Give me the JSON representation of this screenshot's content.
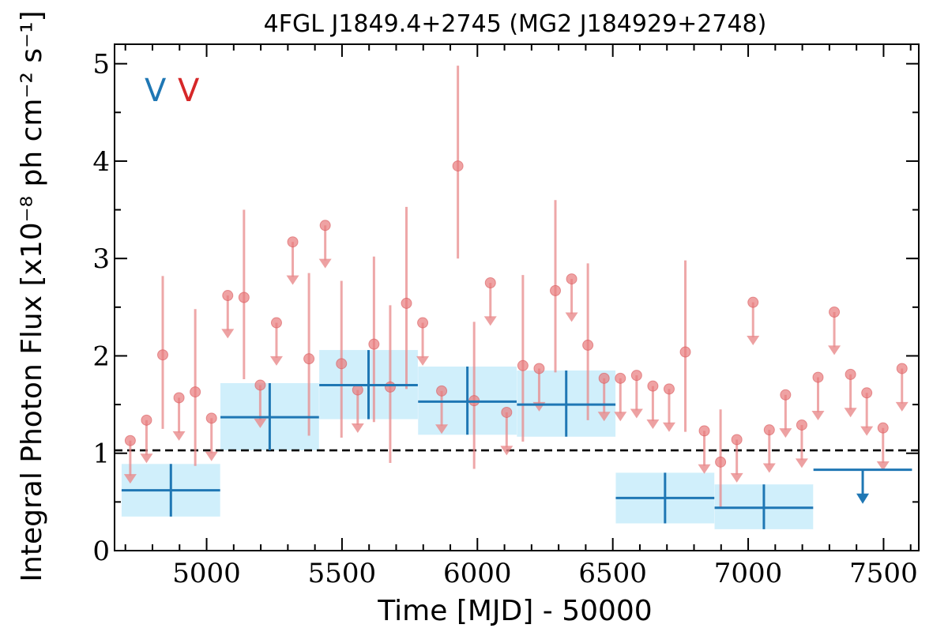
{
  "chart_data": {
    "type": "scatter",
    "title": "4FGL J1849.4+2745 (MG2 J184929+2748)",
    "xlabel": "Time [MJD] - 50000",
    "ylabel": "Integral Photon Flux [x10⁻⁸ ph cm⁻² s⁻¹]",
    "xlim": [
      4660,
      7630
    ],
    "ylim": [
      0,
      5.2
    ],
    "x_ticks": [
      5000,
      5500,
      6000,
      6500,
      7000,
      7500
    ],
    "y_ticks": [
      0,
      1,
      2,
      3,
      4,
      5
    ],
    "legend": {
      "placement": "top-left",
      "entries": [
        {
          "label": "V",
          "color": "#1f77b4"
        },
        {
          "label": "V",
          "color": "#d62728"
        }
      ]
    },
    "colors": {
      "long_bins": "#1f77b4",
      "long_band": "#d0effb",
      "short_bins": "#e8898b",
      "short_fill": "#e87a7c",
      "reference_line": "#000000"
    },
    "reference_line": {
      "y": 1.03,
      "style": "dashed"
    },
    "series": [
      {
        "name": "",
        "kind": "long_bins",
        "points": [
          {
            "x": 4868,
            "xerr": 182,
            "y": 0.62,
            "ylo": 0.35,
            "yhi": 0.89,
            "upper_limit": false
          },
          {
            "x": 5233,
            "xerr": 182,
            "y": 1.37,
            "ylo": 1.03,
            "yhi": 1.72,
            "upper_limit": false
          },
          {
            "x": 5598,
            "xerr": 182,
            "y": 1.7,
            "ylo": 1.35,
            "yhi": 2.06,
            "upper_limit": false
          },
          {
            "x": 5963,
            "xerr": 182,
            "y": 1.53,
            "ylo": 1.19,
            "yhi": 1.89,
            "upper_limit": false
          },
          {
            "x": 6328,
            "xerr": 182,
            "y": 1.5,
            "ylo": 1.17,
            "yhi": 1.85,
            "upper_limit": false
          },
          {
            "x": 6693,
            "xerr": 182,
            "y": 0.54,
            "ylo": 0.28,
            "yhi": 0.8,
            "upper_limit": false
          },
          {
            "x": 7058,
            "xerr": 182,
            "y": 0.44,
            "ylo": 0.22,
            "yhi": 0.68,
            "upper_limit": false
          },
          {
            "x": 7423,
            "xerr": 182,
            "y": 0.83,
            "upper_limit": true
          }
        ]
      },
      {
        "name": "",
        "kind": "short_bins",
        "points": [
          {
            "x": 4718,
            "y": 1.13,
            "upper_limit": true
          },
          {
            "x": 4778,
            "y": 1.34,
            "upper_limit": true
          },
          {
            "x": 4838,
            "y": 2.01,
            "ylo": 1.25,
            "yhi": 2.82,
            "upper_limit": false
          },
          {
            "x": 4898,
            "y": 1.57,
            "upper_limit": true
          },
          {
            "x": 4958,
            "y": 1.63,
            "ylo": 0.87,
            "yhi": 2.48,
            "upper_limit": false
          },
          {
            "x": 5018,
            "y": 1.36,
            "upper_limit": true
          },
          {
            "x": 5078,
            "y": 2.62,
            "upper_limit": true
          },
          {
            "x": 5138,
            "y": 2.6,
            "ylo": 1.76,
            "yhi": 3.5,
            "upper_limit": false
          },
          {
            "x": 5198,
            "y": 1.7,
            "upper_limit": true
          },
          {
            "x": 5258,
            "y": 2.34,
            "upper_limit": true
          },
          {
            "x": 5318,
            "y": 3.17,
            "upper_limit": true
          },
          {
            "x": 5378,
            "y": 1.97,
            "ylo": 1.18,
            "yhi": 2.85,
            "upper_limit": false
          },
          {
            "x": 5438,
            "y": 3.34,
            "upper_limit": true
          },
          {
            "x": 5498,
            "y": 1.92,
            "ylo": 1.16,
            "yhi": 2.77,
            "upper_limit": false
          },
          {
            "x": 5558,
            "y": 1.65,
            "upper_limit": true
          },
          {
            "x": 5618,
            "y": 2.12,
            "ylo": 1.32,
            "yhi": 3.02,
            "upper_limit": false
          },
          {
            "x": 5678,
            "y": 1.68,
            "ylo": 0.9,
            "yhi": 2.52,
            "upper_limit": false
          },
          {
            "x": 5738,
            "y": 2.54,
            "ylo": 1.66,
            "yhi": 3.53,
            "upper_limit": false
          },
          {
            "x": 5798,
            "y": 2.34,
            "upper_limit": true
          },
          {
            "x": 5868,
            "y": 1.64,
            "upper_limit": true
          },
          {
            "x": 5928,
            "y": 3.95,
            "ylo": 3.0,
            "yhi": 4.98,
            "upper_limit": false
          },
          {
            "x": 5988,
            "y": 1.54,
            "ylo": 0.84,
            "yhi": 2.35,
            "upper_limit": false
          },
          {
            "x": 6048,
            "y": 2.75,
            "upper_limit": true
          },
          {
            "x": 6108,
            "y": 1.42,
            "upper_limit": true
          },
          {
            "x": 6168,
            "y": 1.9,
            "ylo": 1.12,
            "yhi": 2.83,
            "upper_limit": false
          },
          {
            "x": 6228,
            "y": 1.87,
            "upper_limit": true
          },
          {
            "x": 6288,
            "y": 2.67,
            "ylo": 1.83,
            "yhi": 3.6,
            "upper_limit": false
          },
          {
            "x": 6348,
            "y": 2.79,
            "upper_limit": true
          },
          {
            "x": 6408,
            "y": 2.11,
            "ylo": 1.34,
            "yhi": 2.95,
            "upper_limit": false
          },
          {
            "x": 6468,
            "y": 1.77,
            "upper_limit": true
          },
          {
            "x": 6528,
            "y": 1.77,
            "upper_limit": true
          },
          {
            "x": 6588,
            "y": 1.8,
            "upper_limit": true
          },
          {
            "x": 6648,
            "y": 1.69,
            "upper_limit": true
          },
          {
            "x": 6708,
            "y": 1.66,
            "upper_limit": true
          },
          {
            "x": 6768,
            "y": 2.04,
            "ylo": 1.22,
            "yhi": 2.98,
            "upper_limit": false
          },
          {
            "x": 6838,
            "y": 1.23,
            "upper_limit": true
          },
          {
            "x": 6898,
            "y": 0.91,
            "ylo": 0.45,
            "yhi": 1.45,
            "upper_limit": false
          },
          {
            "x": 6958,
            "y": 1.14,
            "upper_limit": true
          },
          {
            "x": 7018,
            "y": 2.55,
            "upper_limit": true
          },
          {
            "x": 7078,
            "y": 1.24,
            "upper_limit": true
          },
          {
            "x": 7138,
            "y": 1.6,
            "upper_limit": true
          },
          {
            "x": 7198,
            "y": 1.29,
            "upper_limit": true
          },
          {
            "x": 7258,
            "y": 1.78,
            "upper_limit": true
          },
          {
            "x": 7318,
            "y": 2.45,
            "upper_limit": true
          },
          {
            "x": 7378,
            "y": 1.81,
            "upper_limit": true
          },
          {
            "x": 7438,
            "y": 1.62,
            "upper_limit": true
          },
          {
            "x": 7498,
            "y": 1.26,
            "upper_limit": true
          },
          {
            "x": 7568,
            "y": 1.87,
            "upper_limit": true
          }
        ]
      }
    ]
  }
}
